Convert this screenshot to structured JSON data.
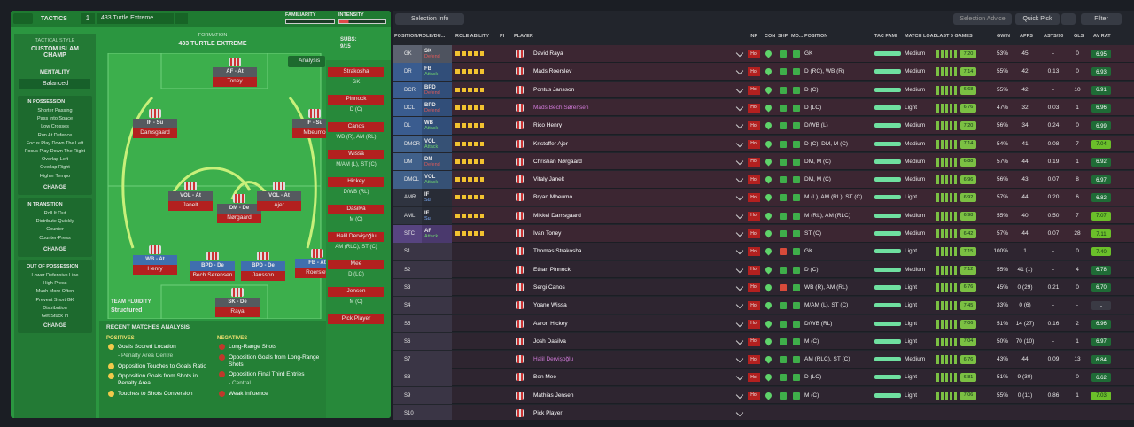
{
  "header": {
    "tactics": "TACTICS",
    "slot": "1",
    "tactic_name": "433 Turtle Extreme",
    "familiarity": "FAMILIARITY",
    "intensity": "INTENSITY"
  },
  "sidebar": {
    "style_label": "TACTICAL STYLE",
    "style": "CUSTOM ISLAM CHAMP",
    "mentality_label": "MENTALITY",
    "mentality": "Balanced",
    "change": "CHANGE",
    "boxes": [
      {
        "title": "IN POSSESSION",
        "items": [
          "Shorter Passing",
          "Pass Into Space",
          "Low Crosses",
          "Run At Defence",
          "Focus Play Down The Left",
          "Focus Play Down The Right",
          "Overlap Left",
          "Overlap Right",
          "Higher Tempo"
        ]
      },
      {
        "title": "IN TRANSITION",
        "items": [
          "Roll It Out",
          "Distribute Quickly",
          "Counter",
          "Counter-Press"
        ]
      },
      {
        "title": "OUT OF POSSESSION",
        "items": [
          "Lower Defensive Line",
          "High Press",
          "Much More Often",
          "Prevent Short GK",
          "Distribution",
          "Get Stuck In"
        ]
      }
    ]
  },
  "pitch": {
    "formation_label": "FORMATION",
    "formation": "433 TURTLE EXTREME",
    "subs_label": "SUBS:",
    "subs_count": "9/15",
    "analysis": "Analysis",
    "fluidity_label": "TEAM FLUIDITY",
    "fluidity": "Structured",
    "players": [
      {
        "role": "AF - At",
        "name": "Toney"
      },
      {
        "role": "IF - Su",
        "name": "Damsgaard"
      },
      {
        "role": "IF - Su",
        "name": "Mbeumo"
      },
      {
        "role": "VOL - At",
        "name": "Janelt"
      },
      {
        "role": "DM - De",
        "name": "Nørgaard"
      },
      {
        "role": "VOL - At",
        "name": "Ajer"
      },
      {
        "role": "WB - At",
        "name": "Henry"
      },
      {
        "role": "BPD - De",
        "name": "Bech Sørensen"
      },
      {
        "role": "BPD - De",
        "name": "Jansson"
      },
      {
        "role": "FB - At",
        "name": "Roerslev"
      },
      {
        "role": "SK - De",
        "name": "Raya"
      }
    ]
  },
  "subs": [
    {
      "name": "Strakosha",
      "pos": "GK"
    },
    {
      "name": "Pinnock",
      "pos": "D (C)"
    },
    {
      "name": "Canos",
      "pos": "WB (R), AM (RL)"
    },
    {
      "name": "Wissa",
      "pos": "M/AM (L), ST (C)"
    },
    {
      "name": "Hickey",
      "pos": "D/WB (RL)"
    },
    {
      "name": "Dasilva",
      "pos": "M (C)"
    },
    {
      "name": "Halil Dervişoğlu",
      "pos": "AM (RLC), ST (C)"
    },
    {
      "name": "Mee",
      "pos": "D (LC)"
    },
    {
      "name": "Jensen",
      "pos": "M (C)"
    },
    {
      "name": "Pick Player"
    }
  ],
  "analysis": {
    "title": "RECENT MATCHES ANALYSIS",
    "positives_label": "POSITIVES",
    "negatives_label": "NEGATIVES",
    "positives": [
      [
        "Goals Scored Location",
        "- Penalty Area Centre"
      ],
      [
        "Opposition Touches to Goals Ratio"
      ],
      [
        "Opposition Goals from Shots in Penalty Area"
      ],
      [
        "Touches to Shots Conversion"
      ]
    ],
    "negatives": [
      [
        "Long-Range Shots"
      ],
      [
        "Opposition Goals from Long-Range Shots"
      ],
      [
        "Opposition Final Third Entries",
        "- Central"
      ],
      [
        "Weak Influence"
      ]
    ]
  },
  "toolbar": {
    "selection_info": "Selection Info",
    "selection_advice": "Selection Advice",
    "quick_pick": "Quick Pick",
    "filter": "Filter"
  },
  "table": {
    "headers": [
      "POSITION/ROLE/DU...",
      "ROLE ABILITY",
      "PI",
      "PLAYER",
      "INF",
      "CON",
      "SHP",
      "MO...",
      "POSITION",
      "TAC FAMI",
      "MATCH LOAD",
      "LAST 5 GAMES",
      "GWIN",
      "APPS",
      "ASTS/90",
      "GLS",
      "AV RAT"
    ],
    "inf": "Hol",
    "rows": [
      {
        "pos": "GK",
        "role": "SK",
        "duty": "Defend",
        "name": "David Raya",
        "position": "GK",
        "load": "Medium",
        "form": "7.20",
        "gwin": "53%",
        "apps": "45",
        "asts": "-",
        "gls": "0",
        "rating": "6.95"
      },
      {
        "pos": "DR",
        "role": "FB",
        "duty": "Attack",
        "name": "Mads Roerslev",
        "position": "D (RC), WB (R)",
        "load": "Medium",
        "form": "7.14",
        "gwin": "55%",
        "apps": "42",
        "asts": "0.13",
        "gls": "0",
        "rating": "6.93"
      },
      {
        "pos": "DCR",
        "role": "BPD",
        "duty": "Defend",
        "name": "Pontus Jansson",
        "position": "D (C)",
        "load": "Medium",
        "form": "6.68",
        "gwin": "55%",
        "apps": "42",
        "asts": "-",
        "gls": "10",
        "rating": "6.91"
      },
      {
        "pos": "DCL",
        "role": "BPD",
        "duty": "Defend",
        "name": "Mads Bech Sørensen",
        "position": "D (LC)",
        "load": "Light",
        "form": "6.76",
        "gwin": "47%",
        "apps": "32",
        "asts": "0.03",
        "gls": "1",
        "rating": "6.96"
      },
      {
        "pos": "DL",
        "role": "WB",
        "duty": "Attack",
        "name": "Rico Henry",
        "position": "D/WB (L)",
        "load": "Medium",
        "form": "7.20",
        "gwin": "56%",
        "apps": "34",
        "asts": "0.24",
        "gls": "0",
        "rating": "6.99"
      },
      {
        "pos": "DMCR",
        "role": "VOL",
        "duty": "Attack",
        "name": "Kristoffer Ajer",
        "position": "D (C), DM, M (C)",
        "load": "Medium",
        "form": "7.14",
        "gwin": "54%",
        "apps": "41",
        "asts": "0.08",
        "gls": "7",
        "rating": "7.04"
      },
      {
        "pos": "DM",
        "role": "DM",
        "duty": "Defend",
        "name": "Christian Nørgaard",
        "position": "DM, M (C)",
        "load": "Medium",
        "form": "6.88",
        "gwin": "57%",
        "apps": "44",
        "asts": "0.19",
        "gls": "1",
        "rating": "6.92"
      },
      {
        "pos": "DMCL",
        "role": "VOL",
        "duty": "Attack",
        "name": "Vitaly Janelt",
        "position": "DM, M (C)",
        "load": "Medium",
        "form": "6.96",
        "gwin": "56%",
        "apps": "43",
        "asts": "0.07",
        "gls": "8",
        "rating": "6.97"
      },
      {
        "pos": "AMR",
        "role": "IF",
        "duty": "Su",
        "name": "Bryan Mbeumo",
        "position": "M (L), AM (RL), ST (C)",
        "load": "Light",
        "form": "6.92",
        "gwin": "57%",
        "apps": "44",
        "asts": "0.20",
        "gls": "6",
        "rating": "6.82"
      },
      {
        "pos": "AML",
        "role": "IF",
        "duty": "Su",
        "name": "Mikkel Damsgaard",
        "position": "M (RL), AM (RLC)",
        "load": "Medium",
        "form": "6.98",
        "gwin": "55%",
        "apps": "40",
        "asts": "0.50",
        "gls": "7",
        "rating": "7.07"
      },
      {
        "pos": "STC",
        "role": "AF",
        "duty": "Attack",
        "name": "Ivan Toney",
        "position": "ST (C)",
        "load": "Medium",
        "form": "6.42",
        "gwin": "57%",
        "apps": "44",
        "asts": "0.07",
        "gls": "28",
        "rating": "7.11"
      },
      {
        "pos": "S1",
        "name": "Thomas Strakosha",
        "position": "GK",
        "load": "Light",
        "form": "7.15",
        "gwin": "100%",
        "apps": "1",
        "asts": "-",
        "gls": "0",
        "rating": "7.40"
      },
      {
        "pos": "S2",
        "name": "Ethan Pinnock",
        "position": "D (C)",
        "load": "Medium",
        "form": "7.12",
        "gwin": "55%",
        "apps": "41 (1)",
        "asts": "-",
        "gls": "4",
        "rating": "6.78"
      },
      {
        "pos": "S3",
        "name": "Sergi Canos",
        "position": "WB (R), AM (RL)",
        "load": "Light",
        "form": "6.76",
        "gwin": "45%",
        "apps": "0 (29)",
        "asts": "0.21",
        "gls": "0",
        "rating": "6.70"
      },
      {
        "pos": "S4",
        "name": "Yoane Wissa",
        "position": "M/AM (L), ST (C)",
        "load": "Light",
        "form": "7.45",
        "gwin": "33%",
        "apps": "0 (6)",
        "asts": "-",
        "gls": "-",
        "rating": "-"
      },
      {
        "pos": "S5",
        "name": "Aaron Hickey",
        "position": "D/WB (RL)",
        "load": "Light",
        "form": "7.06",
        "gwin": "51%",
        "apps": "14 (27)",
        "asts": "0.16",
        "gls": "2",
        "rating": "6.96"
      },
      {
        "pos": "S6",
        "name": "Josh Dasilva",
        "position": "M (C)",
        "load": "Light",
        "form": "7.04",
        "gwin": "50%",
        "apps": "70 (10)",
        "asts": "-",
        "gls": "1",
        "rating": "6.97"
      },
      {
        "pos": "S7",
        "name": "Halil Dervişoğlu",
        "position": "AM (RLC), ST (C)",
        "load": "Medium",
        "form": "6.76",
        "gwin": "43%",
        "apps": "44",
        "asts": "0.09",
        "gls": "13",
        "rating": "6.84"
      },
      {
        "pos": "S8",
        "name": "Ben Mee",
        "position": "D (LC)",
        "load": "Light",
        "form": "6.81",
        "gwin": "51%",
        "apps": "9 (30)",
        "asts": "-",
        "gls": "0",
        "rating": "6.62"
      },
      {
        "pos": "S9",
        "name": "Mathias Jensen",
        "position": "M (C)",
        "load": "Light",
        "form": "7.06",
        "gwin": "55%",
        "apps": "0 (11)",
        "asts": "0.86",
        "gls": "1",
        "rating": "7.03"
      },
      {
        "pos": "S10",
        "name": "Pick Player",
        "position": "-"
      }
    ]
  }
}
